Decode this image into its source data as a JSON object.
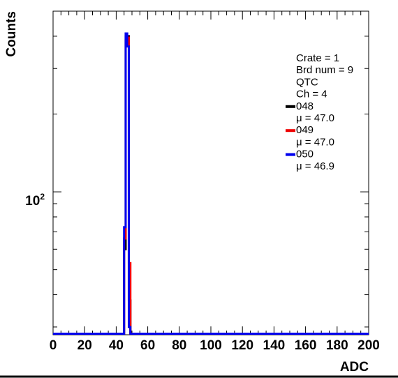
{
  "chart_data": {
    "type": "histogram",
    "xlabel": "ADC",
    "ylabel": "Counts",
    "xlim": [
      0,
      200
    ],
    "ylog": true,
    "ylim": [
      28,
      500
    ],
    "bin_width": 1,
    "x_ticks": [
      0,
      20,
      40,
      60,
      80,
      100,
      120,
      140,
      160,
      180,
      200
    ],
    "y_tick_label": {
      "value": 100,
      "base": "10",
      "exp": "2"
    },
    "legend_header": [
      "Crate = 1",
      "Brd num = 9",
      "QTC",
      "Ch = 4"
    ],
    "series": [
      {
        "name": "048",
        "stat": "μ = 47.0",
        "color": "#000000",
        "bins": [
          {
            "x": 45,
            "count": 60
          },
          {
            "x": 46,
            "count": 400
          },
          {
            "x": 47,
            "count": 400
          },
          {
            "x": 48,
            "count": 38
          }
        ]
      },
      {
        "name": "049",
        "stat": "μ = 47.0",
        "color": "#ee0000",
        "bins": [
          {
            "x": 45,
            "count": 66
          },
          {
            "x": 46,
            "count": 385
          },
          {
            "x": 47,
            "count": 395
          },
          {
            "x": 48,
            "count": 53
          }
        ]
      },
      {
        "name": "050",
        "stat": "μ = 46.9",
        "color": "#0000ee",
        "bins": [
          {
            "x": 45,
            "count": 73
          },
          {
            "x": 46,
            "count": 410
          },
          {
            "x": 47,
            "count": 365
          },
          {
            "x": 48,
            "count": 30
          }
        ]
      }
    ]
  }
}
